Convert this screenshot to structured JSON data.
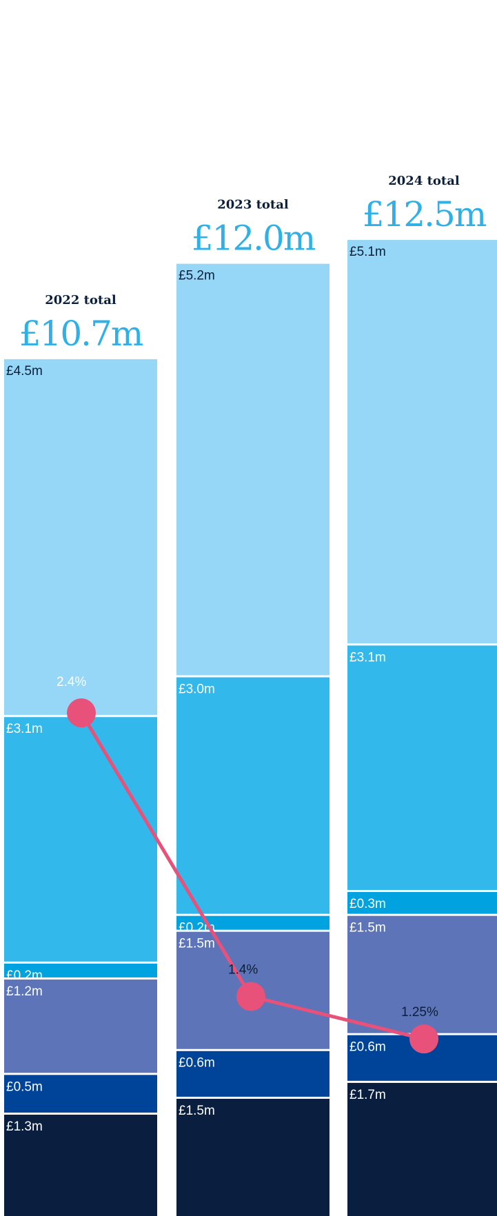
{
  "chart_data": {
    "type": "bar",
    "stacked": true,
    "categories": [
      "2022",
      "2023",
      "2024"
    ],
    "totals": [
      {
        "caption": "2022 total",
        "value_text": "£10.7m",
        "value": 10.7
      },
      {
        "caption": "2023 total",
        "value_text": "£12.0m",
        "value": 12.0
      },
      {
        "caption": "2024 total",
        "value_text": "£12.5m",
        "value": 12.5
      }
    ],
    "stack_order_bottom_to_top": [
      "s1",
      "s2",
      "s3",
      "s4",
      "s5",
      "s6"
    ],
    "series": [
      {
        "key": "s1",
        "color": "#0a1f3f",
        "text_color": "#ffffff",
        "values": [
          1.3,
          1.5,
          1.7
        ],
        "labels": [
          "£1.3m",
          "£1.5m",
          "£1.7m"
        ]
      },
      {
        "key": "s2",
        "color": "#00449a",
        "text_color": "#ffffff",
        "values": [
          0.5,
          0.6,
          0.6
        ],
        "labels": [
          "£0.5m",
          "£0.6m",
          "£0.6m"
        ]
      },
      {
        "key": "s3",
        "color": "#5d74b8",
        "text_color": "#ffffff",
        "values": [
          1.2,
          1.5,
          1.5
        ],
        "labels": [
          "£1.2m",
          "£1.5m",
          "£1.5m"
        ]
      },
      {
        "key": "s4",
        "color": "#00a3e0",
        "text_color": "#ffffff",
        "values": [
          0.2,
          0.2,
          0.3
        ],
        "labels": [
          "£0.2m",
          "£0.2m",
          "£0.3m"
        ]
      },
      {
        "key": "s5",
        "color": "#33b8ec",
        "text_color": "#ffffff",
        "values": [
          3.1,
          3.0,
          3.1
        ],
        "labels": [
          "£3.1m",
          "£3.0m",
          "£3.1m"
        ]
      },
      {
        "key": "s6",
        "color": "#96d6f6",
        "text_color": "#0b1f3a",
        "values": [
          4.5,
          5.2,
          5.1
        ],
        "labels": [
          "£4.5m",
          "£5.2m",
          "£5.1m"
        ]
      }
    ],
    "line": {
      "color": "#e8517a",
      "values": [
        2.4,
        1.4,
        1.25
      ],
      "labels": [
        "2.4%",
        "1.4%",
        "1.25%"
      ],
      "label_colors": [
        "#ffffff",
        "#0b1f3a",
        "#0b1f3a"
      ]
    }
  }
}
